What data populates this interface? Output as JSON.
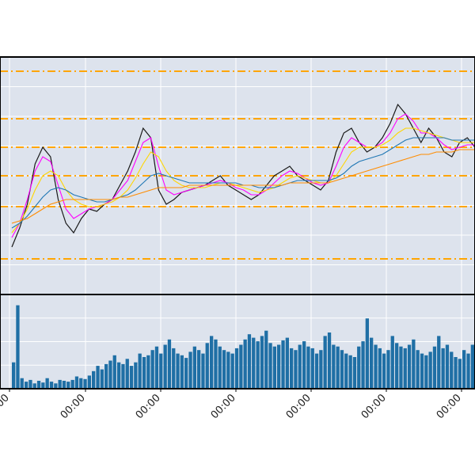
{
  "chart_data": {
    "type": "line",
    "title": "",
    "legend": "none",
    "grid": true,
    "x_tick_labels": [
      "00:00",
      "00:00",
      "00:00",
      "00:00",
      "00:00",
      "00:00",
      "00:00"
    ],
    "price_panel": {
      "ylim": [
        0,
        100
      ],
      "series": [
        {
          "color": "#1a1a1a",
          "kind": "candles-close",
          "values": [
            20,
            28,
            38,
            55,
            62,
            58,
            40,
            30,
            26,
            32,
            36,
            35,
            38,
            40,
            46,
            52,
            60,
            70,
            66,
            44,
            38,
            40,
            43,
            44,
            45,
            46,
            48,
            50,
            46,
            44,
            42,
            40,
            42,
            46,
            50,
            52,
            54,
            50,
            48,
            46,
            44,
            48,
            60,
            68,
            70,
            64,
            60,
            62,
            66,
            72,
            80,
            76,
            70,
            64,
            70,
            66,
            60,
            58,
            64,
            66,
            62
          ]
        },
        {
          "color": "#ff00ff",
          "kind": "ma-fast",
          "values": [
            24,
            30,
            40,
            52,
            58,
            56,
            46,
            36,
            32,
            34,
            36,
            37,
            38,
            40,
            44,
            48,
            56,
            64,
            66,
            54,
            44,
            42,
            43,
            44,
            45,
            46,
            47,
            48,
            47,
            45,
            44,
            42,
            42,
            44,
            47,
            50,
            52,
            51,
            49,
            47,
            46,
            47,
            54,
            62,
            66,
            64,
            62,
            62,
            64,
            68,
            74,
            76,
            73,
            68,
            68,
            66,
            63,
            61,
            62,
            63,
            63
          ]
        },
        {
          "color": "#ffd600",
          "kind": "ma-mid",
          "values": [
            26,
            30,
            36,
            44,
            50,
            52,
            50,
            44,
            40,
            38,
            37,
            37,
            38,
            39,
            41,
            44,
            49,
            55,
            60,
            58,
            52,
            48,
            46,
            45,
            45,
            45,
            46,
            47,
            47,
            46,
            45,
            44,
            43,
            44,
            45,
            47,
            49,
            50,
            49,
            48,
            47,
            47,
            50,
            55,
            60,
            62,
            62,
            62,
            63,
            65,
            68,
            70,
            70,
            69,
            68,
            67,
            66,
            65,
            64,
            64,
            64
          ]
        },
        {
          "color": "#1f77b4",
          "kind": "ma-slow",
          "values": [
            28,
            30,
            33,
            37,
            41,
            44,
            45,
            44,
            42,
            41,
            40,
            39,
            39,
            40,
            41,
            42,
            44,
            47,
            50,
            51,
            50,
            49,
            48,
            47,
            47,
            47,
            47,
            47,
            47,
            47,
            46,
            46,
            45,
            45,
            45,
            46,
            47,
            48,
            48,
            48,
            48,
            48,
            49,
            51,
            54,
            56,
            57,
            58,
            59,
            61,
            63,
            65,
            66,
            66,
            66,
            66,
            66,
            65,
            65,
            65,
            65
          ]
        },
        {
          "color": "#ff8c00",
          "kind": "ma-long",
          "values": [
            30,
            31,
            32,
            34,
            36,
            38,
            39,
            40,
            40,
            40,
            40,
            40,
            40,
            40,
            41,
            41,
            42,
            43,
            44,
            45,
            45,
            45,
            45,
            46,
            46,
            46,
            46,
            46,
            46,
            46,
            46,
            46,
            46,
            46,
            46,
            46,
            47,
            47,
            47,
            47,
            47,
            47,
            48,
            49,
            50,
            51,
            52,
            53,
            54,
            55,
            56,
            57,
            58,
            59,
            59,
            60,
            60,
            60,
            61,
            61,
            61
          ]
        }
      ],
      "hlines": {
        "color": "#ffa500",
        "values": [
          15,
          37,
          50,
          62,
          74,
          94
        ]
      }
    },
    "volume_panel": {
      "color": "#1f6fa5",
      "values": [
        30,
        95,
        12,
        8,
        10,
        6,
        9,
        7,
        12,
        8,
        6,
        10,
        9,
        8,
        10,
        14,
        12,
        11,
        15,
        20,
        26,
        22,
        28,
        32,
        38,
        30,
        28,
        34,
        26,
        30,
        40,
        36,
        38,
        44,
        48,
        40,
        50,
        56,
        46,
        40,
        38,
        35,
        42,
        48,
        44,
        40,
        52,
        60,
        56,
        48,
        44,
        42,
        40,
        46,
        50,
        56,
        62,
        58,
        54,
        60,
        66,
        52,
        48,
        50,
        55,
        58,
        46,
        44,
        50,
        54,
        48,
        46,
        40,
        44,
        60,
        64,
        50,
        48,
        44,
        40,
        38,
        36,
        48,
        54,
        80,
        58,
        50,
        46,
        40,
        44,
        60,
        52,
        48,
        46,
        50,
        56,
        44,
        40,
        38,
        42,
        48,
        60,
        46,
        50,
        42,
        36,
        34,
        44,
        40,
        50
      ]
    }
  }
}
